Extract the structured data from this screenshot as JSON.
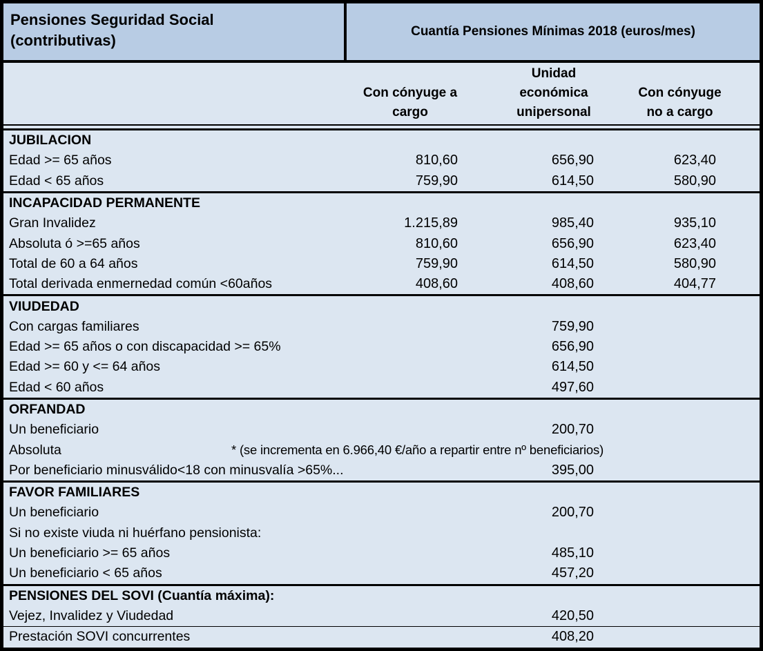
{
  "colors": {
    "title_band_bg": "#b8cce4",
    "body_bg": "#dce6f1",
    "border": "#000000",
    "text": "#000000"
  },
  "title": {
    "left": "Pensiones Seguridad Social\n(contributivas)",
    "right": "Cuantía Pensiones Mínimas 2018 (euros/mes)"
  },
  "columns": {
    "c1": "Con cónyuge a\ncargo",
    "c2": "Unidad\neconómica\nunipersonal",
    "c3": "Con cónyuge\nno a cargo"
  },
  "sections": [
    {
      "header": "JUBILACION",
      "rows": [
        {
          "label": "Edad >= 65 años",
          "c1": "810,60",
          "c2": "656,90",
          "c3": "623,40"
        },
        {
          "label": "Edad < 65 años",
          "c1": "759,90",
          "c2": "614,50",
          "c3": "580,90"
        }
      ]
    },
    {
      "header": "INCAPACIDAD PERMANENTE",
      "rows": [
        {
          "label": "Gran Invalidez",
          "c1": "1.215,89",
          "c2": "985,40",
          "c3": "935,10"
        },
        {
          "label": "Absoluta ó >=65 años",
          "c1": "810,60",
          "c2": "656,90",
          "c3": "623,40"
        },
        {
          "label": "Total de 60 a 64 años",
          "c1": "759,90",
          "c2": "614,50",
          "c3": "580,90"
        },
        {
          "label": "Total derivada enmernedad común <60años",
          "c1": "408,60",
          "c2": "408,60",
          "c3": "404,77"
        }
      ]
    },
    {
      "header": "VIUDEDAD",
      "rows": [
        {
          "label": "Con cargas familiares",
          "c2": "759,90"
        },
        {
          "label": "Edad >= 65 años o con discapacidad >= 65%",
          "c2": "656,90"
        },
        {
          "label": "Edad >= 60 y <= 64 años",
          "c2": "614,50"
        },
        {
          "label": "Edad < 60 años",
          "c2": "497,60"
        }
      ]
    },
    {
      "header": "ORFANDAD",
      "rows": [
        {
          "label": "Un beneficiario",
          "c2": "200,70"
        },
        {
          "label": "Absoluta",
          "note": "*  (se incrementa en 6.966,40 €/año a repartir entre nº beneficiarios)"
        },
        {
          "label": "Por beneficiario minusválido<18 con minusvalía >65%...",
          "c2": "395,00"
        }
      ]
    },
    {
      "header": "FAVOR FAMILIARES",
      "rows": [
        {
          "label": "Un beneficiario",
          "c2": "200,70"
        },
        {
          "label": "Si no existe viuda ni huérfano pensionista:"
        },
        {
          "label": "Un beneficiario >= 65 años",
          "c2": "485,10"
        },
        {
          "label": "Un beneficiario < 65 años",
          "c2": "457,20"
        }
      ]
    },
    {
      "header": "PENSIONES DEL SOVI (Cuantía máxima):",
      "rows": [
        {
          "label": "Vejez, Invalidez y Viudedad",
          "c2": "420,50"
        },
        {
          "label": "Prestación SOVI concurrentes",
          "c2": "408,20"
        }
      ]
    }
  ]
}
